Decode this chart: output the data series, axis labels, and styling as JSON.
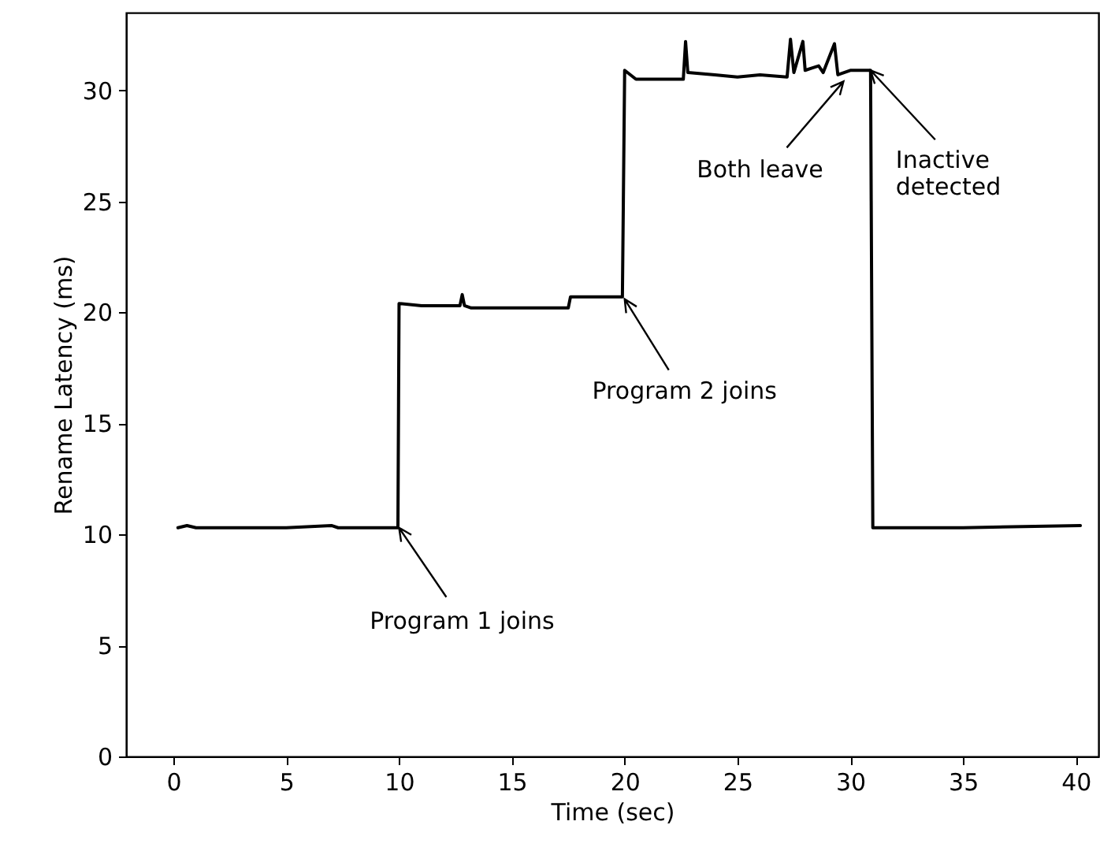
{
  "chart_data": {
    "type": "line",
    "xlabel": "Time (sec)",
    "ylabel": "Rename Latency (ms)",
    "x": [
      0.2,
      0.6,
      1,
      5,
      7,
      7.3,
      9.95,
      10.0,
      11,
      12.7,
      12.8,
      12.9,
      13.2,
      17.5,
      17.6,
      19.9,
      20.0,
      20.5,
      22.6,
      22.7,
      22.8,
      24,
      25,
      26,
      27.2,
      27.35,
      27.5,
      27.9,
      28.0,
      28.3,
      28.6,
      28.8,
      29.3,
      29.45,
      30,
      30.9,
      31.0,
      35,
      40.2
    ],
    "series": [
      {
        "color": "#000000",
        "values": [
          10.3,
          10.4,
          10.3,
          10.3,
          10.4,
          10.3,
          10.3,
          20.4,
          20.3,
          20.3,
          20.8,
          20.3,
          20.2,
          20.2,
          20.7,
          20.7,
          30.9,
          30.5,
          30.5,
          32.2,
          30.8,
          30.7,
          30.6,
          30.7,
          30.6,
          32.3,
          30.8,
          32.2,
          30.9,
          31.0,
          31.1,
          30.8,
          32.1,
          30.7,
          30.9,
          30.9,
          10.3,
          10.3,
          10.4
        ]
      }
    ],
    "xlim": [
      -2.1,
      41
    ],
    "ylim": [
      0,
      33.5
    ],
    "xticks": [
      0,
      5,
      10,
      15,
      20,
      25,
      30,
      35,
      40
    ],
    "yticks": [
      0,
      5,
      10,
      15,
      20,
      25,
      30
    ],
    "annotations": [
      {
        "text": "Program 1 joins",
        "x": 10,
        "y": 10.3
      },
      {
        "text": "Program 2 joins",
        "x": 20,
        "y": 20.6
      },
      {
        "text": "Both leave",
        "x": 29.7,
        "y": 30.4
      },
      {
        "text": "Inactive\ndetected",
        "x": 30.9,
        "y": 30.9
      }
    ],
    "grid": false,
    "marker": "none",
    "line_style": "solid"
  }
}
